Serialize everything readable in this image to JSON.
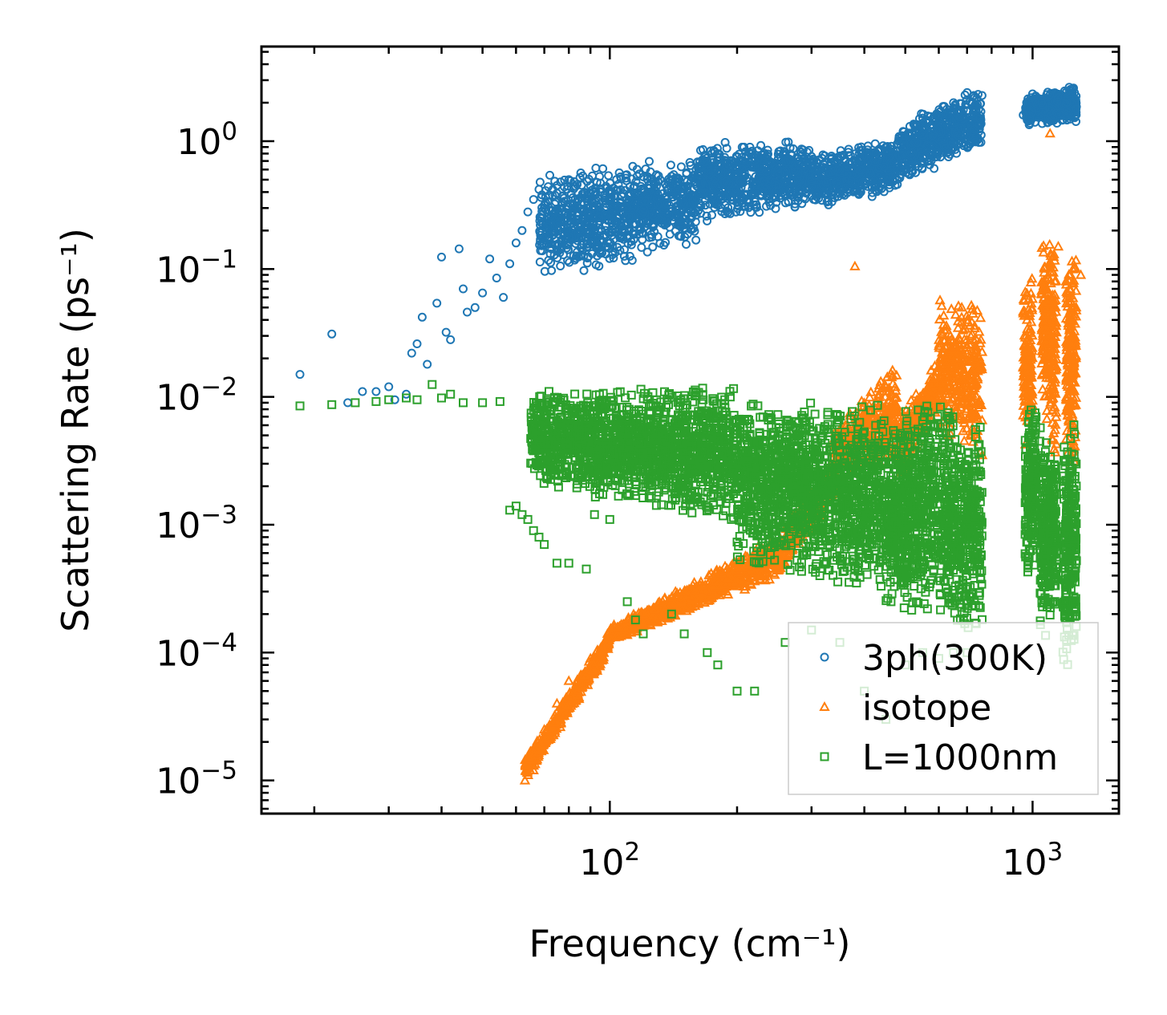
{
  "chart_data": {
    "type": "scatter",
    "xscale": "log",
    "yscale": "log",
    "xlim": [
      15,
      1600
    ],
    "ylim": [
      5.5e-06,
      5.5
    ],
    "xlabel": "Frequency (cm⁻¹)",
    "ylabel": "Scattering Rate (ps⁻¹)",
    "x_ticks": [
      {
        "value": 100,
        "base": "10",
        "exp": "2"
      },
      {
        "value": 1000,
        "base": "10",
        "exp": "3"
      }
    ],
    "y_ticks": [
      {
        "value": 1e-05,
        "base": "10",
        "exp": "−5"
      },
      {
        "value": 0.0001,
        "base": "10",
        "exp": "−4"
      },
      {
        "value": 0.001,
        "base": "10",
        "exp": "−3"
      },
      {
        "value": 0.01,
        "base": "10",
        "exp": "−2"
      },
      {
        "value": 0.1,
        "base": "10",
        "exp": "−1"
      },
      {
        "value": 1,
        "base": "10",
        "exp": "0"
      }
    ],
    "legend_position": "lower-right",
    "series": [
      {
        "name": "3ph(300K)",
        "marker": "circle",
        "color": "#1f77b4",
        "points": [
          [
            18.5,
            0.015
          ],
          [
            22,
            0.031
          ],
          [
            24,
            0.009
          ],
          [
            26,
            0.011
          ],
          [
            28,
            0.011
          ],
          [
            30,
            0.012
          ],
          [
            31,
            0.0095
          ],
          [
            33,
            0.0105
          ],
          [
            34,
            0.022
          ],
          [
            35,
            0.026
          ],
          [
            36,
            0.042
          ],
          [
            37,
            0.018
          ],
          [
            39,
            0.054
          ],
          [
            40,
            0.124
          ],
          [
            41,
            0.032
          ],
          [
            42,
            0.028
          ],
          [
            44,
            0.144
          ],
          [
            45,
            0.07
          ],
          [
            46,
            0.046
          ],
          [
            48,
            0.05
          ],
          [
            50,
            0.065
          ],
          [
            52,
            0.12
          ],
          [
            54,
            0.085
          ],
          [
            56,
            0.06
          ],
          [
            58,
            0.11
          ],
          [
            60,
            0.16
          ],
          [
            62,
            0.2
          ],
          [
            64,
            0.28
          ],
          [
            66,
            0.35
          ],
          [
            68,
            0.42
          ],
          [
            70,
            0.3
          ],
          [
            72,
            0.38
          ],
          [
            75,
            0.45
          ],
          [
            80,
            0.5
          ],
          [
            85,
            0.52
          ],
          [
            90,
            0.45
          ],
          [
            95,
            0.4
          ],
          [
            100,
            0.35
          ],
          [
            110,
            0.3
          ],
          [
            120,
            0.28
          ],
          [
            130,
            0.32
          ],
          [
            140,
            0.4
          ],
          [
            150,
            0.5
          ],
          [
            160,
            0.6
          ],
          [
            170,
            0.7
          ],
          [
            180,
            0.8
          ],
          [
            200,
            0.75
          ],
          [
            220,
            0.7
          ],
          [
            250,
            0.6
          ],
          [
            280,
            0.65
          ],
          [
            300,
            0.62
          ],
          [
            350,
            0.6
          ],
          [
            400,
            0.75
          ],
          [
            450,
            0.9
          ],
          [
            500,
            1.1
          ],
          [
            550,
            1.3
          ],
          [
            600,
            1.6
          ],
          [
            650,
            2.0
          ],
          [
            700,
            2.4
          ],
          [
            750,
            1.5
          ],
          [
            950,
            1.6
          ],
          [
            1000,
            1.7
          ],
          [
            1050,
            2.0
          ],
          [
            1100,
            2.3
          ],
          [
            1150,
            2.2
          ],
          [
            1200,
            2.4
          ],
          [
            1250,
            2.6
          ]
        ],
        "bands": [
          {
            "x": [
              68,
              160
            ],
            "lo": [
              0.08,
              0.15
            ],
            "hi": [
              0.55,
              0.8
            ],
            "n": 900
          },
          {
            "x": [
              160,
              300
            ],
            "lo": [
              0.22,
              0.3
            ],
            "hi": [
              1.0,
              1.0
            ],
            "n": 700
          },
          {
            "x": [
              300,
              480
            ],
            "lo": [
              0.3,
              0.38
            ],
            "hi": [
              0.8,
              1.1
            ],
            "n": 500
          },
          {
            "x": [
              480,
              760
            ],
            "lo": [
              0.45,
              0.9
            ],
            "hi": [
              1.4,
              2.8
            ],
            "n": 500
          },
          {
            "x": [
              960,
              1270
            ],
            "lo": [
              1.25,
              1.4
            ],
            "hi": [
              2.3,
              2.8
            ],
            "n": 400
          }
        ]
      },
      {
        "name": "isotope",
        "marker": "triangle",
        "color": "#ff7f0e",
        "points": [
          [
            63,
            1e-05
          ],
          [
            66,
            1.2e-05
          ],
          [
            70,
            2.5e-05
          ],
          [
            75,
            4e-05
          ],
          [
            80,
            6e-05
          ],
          [
            90,
            9e-05
          ],
          [
            100,
            0.00013
          ],
          [
            120,
            0.0002
          ],
          [
            150,
            0.0003
          ],
          [
            200,
            0.0005
          ],
          [
            250,
            0.0007
          ],
          [
            300,
            0.001
          ],
          [
            350,
            0.002
          ],
          [
            380,
            0.105
          ],
          [
            400,
            0.006
          ],
          [
            450,
            0.012
          ],
          [
            500,
            0.007
          ],
          [
            550,
            0.004
          ],
          [
            600,
            0.01
          ],
          [
            650,
            0.025
          ],
          [
            700,
            0.04
          ],
          [
            1100,
            1.15
          ],
          [
            1150,
            0.15
          ],
          [
            1200,
            0.08
          ],
          [
            1250,
            0.05
          ],
          [
            1300,
            0.09
          ]
        ],
        "bands": [
          {
            "x": [
              63,
              100
            ],
            "lo": [
              1e-05,
              0.0001
            ],
            "hi": [
              1.5e-05,
              0.00015
            ],
            "n": 500
          },
          {
            "x": [
              100,
              260
            ],
            "lo": [
              0.00012,
              0.0004
            ],
            "hi": [
              0.00016,
              0.0009
            ],
            "n": 700
          },
          {
            "x": [
              260,
              340
            ],
            "lo": [
              0.0005,
              0.0015
            ],
            "hi": [
              0.001,
              0.004
            ],
            "n": 250
          },
          {
            "x": [
              340,
              480
            ],
            "lo": [
              0.002,
              0.003
            ],
            "hi": [
              0.006,
              0.02
            ],
            "n": 350
          },
          {
            "x": [
              480,
              600
            ],
            "lo": [
              0.002,
              0.008
            ],
            "hi": [
              0.008,
              0.02
            ],
            "n": 250
          },
          {
            "x": [
              600,
              760
            ],
            "lo": [
              0.005,
              0.003
            ],
            "hi": [
              0.07,
              0.06
            ],
            "n": 350
          },
          {
            "x": [
              950,
              1000
            ],
            "lo": [
              0.003,
              0.005
            ],
            "hi": [
              0.07,
              0.1
            ],
            "n": 150
          },
          {
            "x": [
              1050,
              1140
            ],
            "lo": [
              0.01,
              0.002
            ],
            "hi": [
              0.18,
              0.2
            ],
            "n": 250
          },
          {
            "x": [
              1200,
              1270
            ],
            "lo": [
              0.003,
              0.002
            ],
            "hi": [
              0.15,
              0.16
            ],
            "n": 200
          }
        ]
      },
      {
        "name": "L=1000nm",
        "marker": "square",
        "color": "#2ca02c",
        "points": [
          [
            18.5,
            0.0085
          ],
          [
            22,
            0.0087
          ],
          [
            25,
            0.009
          ],
          [
            28,
            0.0092
          ],
          [
            30,
            0.0095
          ],
          [
            33,
            0.0098
          ],
          [
            35,
            0.0095
          ],
          [
            38,
            0.0125
          ],
          [
            40,
            0.0098
          ],
          [
            42,
            0.0105
          ],
          [
            45,
            0.009
          ],
          [
            50,
            0.009
          ],
          [
            55,
            0.0092
          ],
          [
            58,
            0.0013
          ],
          [
            60,
            0.0014
          ],
          [
            62,
            0.0012
          ],
          [
            64,
            0.0011
          ],
          [
            66,
            0.0009
          ],
          [
            68,
            0.0008
          ],
          [
            70,
            0.0007
          ],
          [
            75,
            0.0005
          ],
          [
            80,
            0.0005
          ],
          [
            88,
            0.00045
          ],
          [
            92,
            0.0012
          ],
          [
            100,
            0.0011
          ],
          [
            110,
            0.00025
          ],
          [
            115,
            0.00018
          ],
          [
            120,
            0.00014
          ],
          [
            140,
            0.0002
          ],
          [
            150,
            0.00014
          ],
          [
            170,
            0.0001
          ],
          [
            180,
            8e-05
          ],
          [
            200,
            5e-05
          ],
          [
            220,
            5e-05
          ],
          [
            260,
            0.00012
          ],
          [
            300,
            0.00015
          ],
          [
            350,
            0.00012
          ],
          [
            400,
            5e-05
          ],
          [
            450,
            3e-05
          ],
          [
            500,
            8e-05
          ],
          [
            550,
            0.0001
          ],
          [
            600,
            9e-05
          ],
          [
            650,
            0.0001
          ],
          [
            700,
            0.0001
          ]
        ],
        "bands": [
          {
            "x": [
              65,
              200
            ],
            "lo": [
              0.002,
              0.001
            ],
            "hi": [
              0.012,
              0.012
            ],
            "n": 1600
          },
          {
            "x": [
              200,
              450
            ],
            "lo": [
              0.0005,
              0.0003
            ],
            "hi": [
              0.01,
              0.009
            ],
            "n": 1400
          },
          {
            "x": [
              450,
              560
            ],
            "lo": [
              0.0002,
              0.0002
            ],
            "hi": [
              0.005,
              0.012
            ],
            "n": 500
          },
          {
            "x": [
              560,
              760
            ],
            "lo": [
              0.0002,
              0.0001
            ],
            "hi": [
              0.012,
              0.006
            ],
            "n": 600
          },
          {
            "x": [
              960,
              1020
            ],
            "lo": [
              0.0003,
              0.0005
            ],
            "hi": [
              0.008,
              0.012
            ],
            "n": 200
          },
          {
            "x": [
              1040,
              1140
            ],
            "lo": [
              0.0001,
              0.0002
            ],
            "hi": [
              0.006,
              0.004
            ],
            "n": 300
          },
          {
            "x": [
              1180,
              1270
            ],
            "lo": [
              7e-05,
              0.0001
            ],
            "hi": [
              0.005,
              0.008
            ],
            "n": 250
          }
        ]
      }
    ]
  }
}
